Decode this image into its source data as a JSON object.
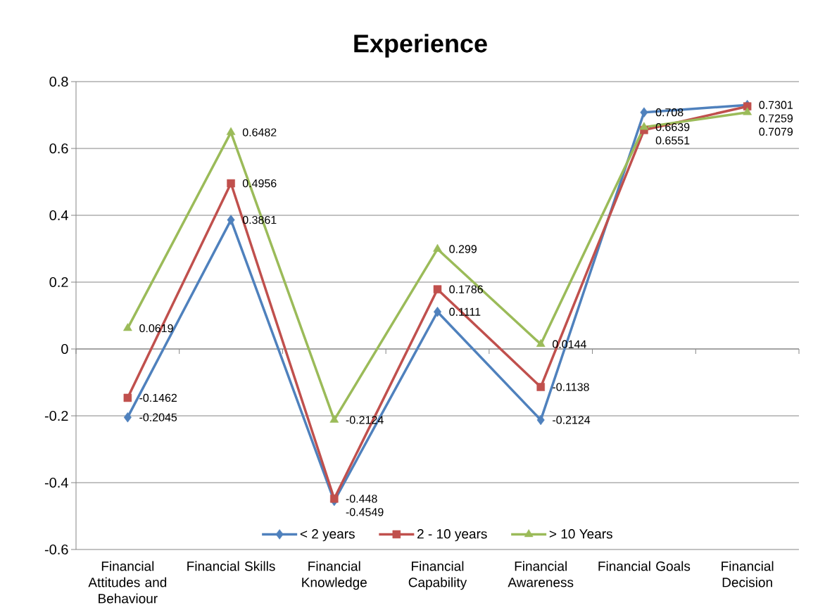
{
  "chart_data": {
    "type": "line",
    "title": "Experience",
    "categories": [
      "Financial Attitudes and Behaviour",
      "Financial Skills",
      "Financial Knowledge",
      "Financial Capability",
      "Financial Awareness",
      "Financial Goals",
      "Financial Decision"
    ],
    "series": [
      {
        "name": "< 2 years",
        "color": "#4f81bd",
        "marker": "diamond",
        "values": [
          -0.2045,
          0.3861,
          -0.4549,
          0.1111,
          -0.2124,
          0.708,
          0.7301
        ]
      },
      {
        "name": "2 - 10 years",
        "color": "#c0504d",
        "marker": "square",
        "values": [
          -0.1462,
          0.4956,
          -0.448,
          0.1786,
          -0.1138,
          0.6551,
          0.7259
        ]
      },
      {
        "name": "> 10 Years",
        "color": "#9bbb59",
        "marker": "triangle",
        "values": [
          0.0619,
          0.6482,
          -0.2124,
          0.299,
          0.0144,
          0.6639,
          0.7079
        ]
      }
    ],
    "ylim": [
      -0.6,
      0.8
    ],
    "yticks": [
      -0.6,
      -0.4,
      -0.2,
      0,
      0.2,
      0.4,
      0.6,
      0.8
    ],
    "grid": "y",
    "legend": "bottom",
    "data_labels": true
  }
}
